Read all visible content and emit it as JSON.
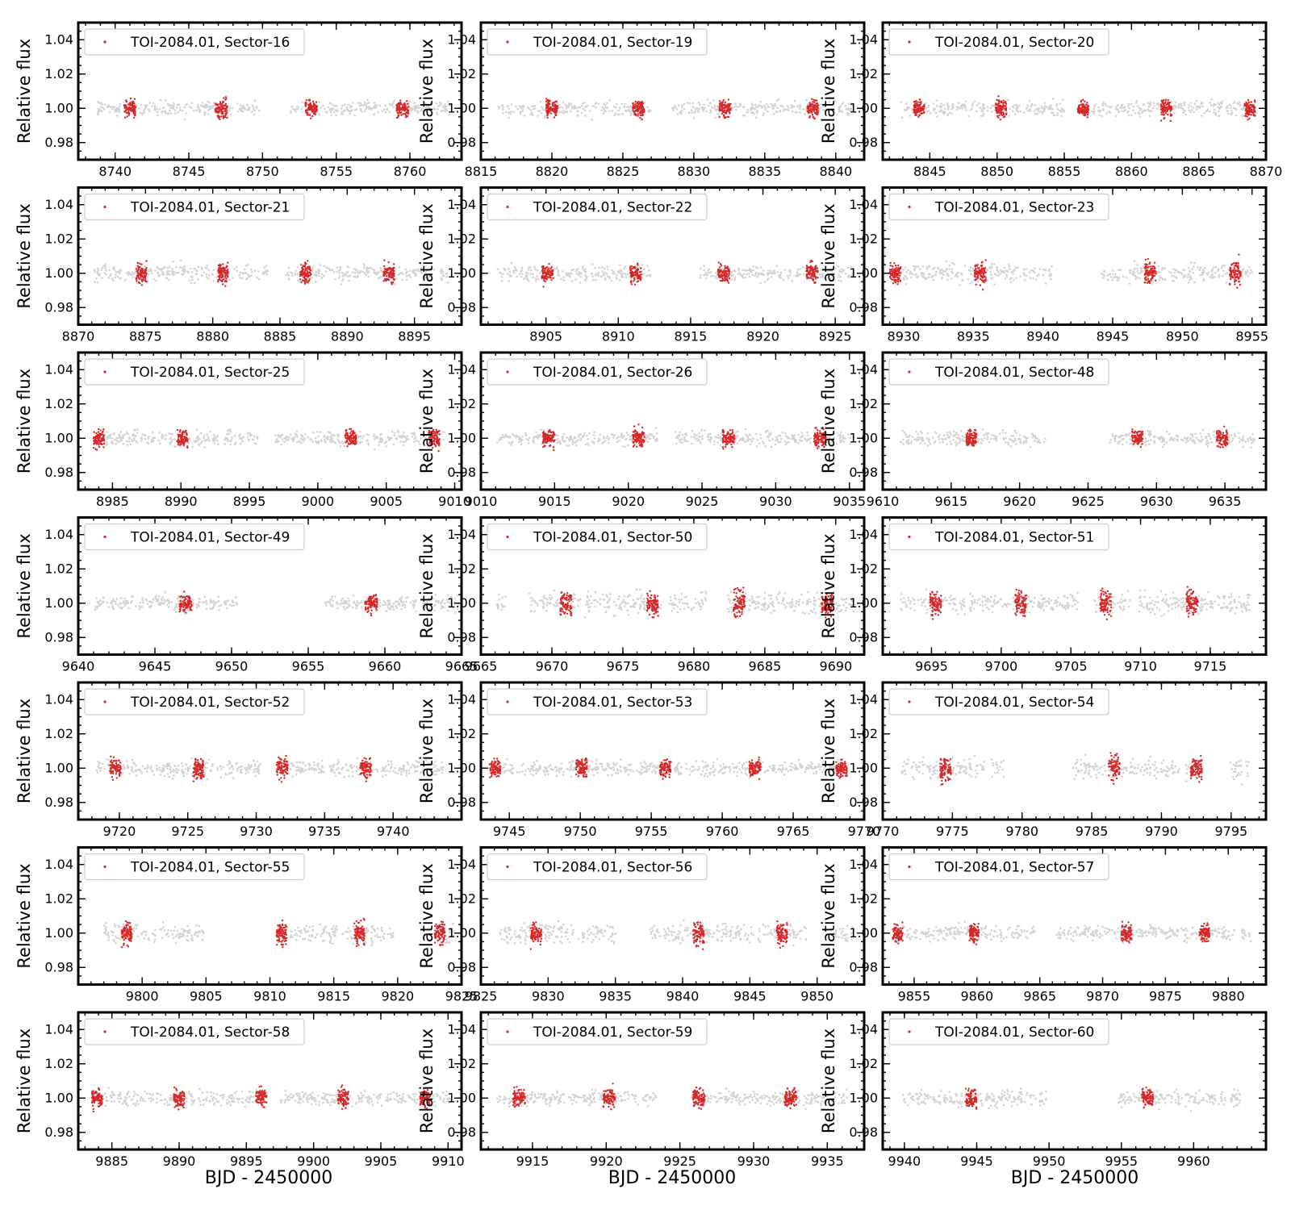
{
  "figure": {
    "ylabel": "Relative flux",
    "xlabel": "BJD - 2450000",
    "colors": {
      "background_points": "#d3d3d3",
      "transit_points": "#d62728"
    }
  },
  "chart_data": [
    {
      "type": "scatter",
      "legend": "TOI-2084.01, Sector-16",
      "xlim": [
        8737.5,
        8763.5
      ],
      "xticks": [
        8740,
        8745,
        8750,
        8755,
        8760
      ],
      "ylim": [
        0.97,
        1.05
      ],
      "yticks": [
        0.98,
        1.0,
        1.02,
        1.04
      ],
      "segments": [
        [
          8738.8,
          8749.8
        ],
        [
          8751.8,
          8762.7
        ]
      ],
      "transits": [
        8741.0,
        8747.2,
        8753.3,
        8759.5
      ],
      "scatter_sigma": 0.007
    },
    {
      "type": "scatter",
      "legend": "TOI-2084.01, Sector-19",
      "xlim": [
        8815,
        8842
      ],
      "xticks": [
        8815,
        8820,
        8825,
        8830,
        8835,
        8840
      ],
      "ylim": [
        0.97,
        1.05
      ],
      "yticks": [
        0.98,
        1.0,
        1.02,
        1.04
      ],
      "segments": [
        [
          8816.2,
          8827.0
        ],
        [
          8828.5,
          8841.2
        ]
      ],
      "transits": [
        8820.0,
        8826.1,
        8832.2,
        8838.4
      ],
      "scatter_sigma": 0.007
    },
    {
      "type": "scatter",
      "legend": "TOI-2084.01, Sector-20",
      "xlim": [
        8841.5,
        8870
      ],
      "xticks": [
        8845,
        8850,
        8855,
        8860,
        8865,
        8870
      ],
      "ylim": [
        0.97,
        1.05
      ],
      "yticks": [
        0.98,
        1.0,
        1.02,
        1.04
      ],
      "segments": [
        [
          8842.8,
          8855.0
        ],
        [
          8856.2,
          8869.3
        ]
      ],
      "transits": [
        8844.2,
        8850.3,
        8856.4,
        8862.6,
        8868.8
      ],
      "scatter_sigma": 0.007
    },
    {
      "type": "scatter",
      "legend": "TOI-2084.01, Sector-21",
      "xlim": [
        8870,
        8898.5
      ],
      "xticks": [
        8870,
        8875,
        8880,
        8885,
        8890,
        8895
      ],
      "ylim": [
        0.97,
        1.05
      ],
      "yticks": [
        0.98,
        1.0,
        1.02,
        1.04
      ],
      "segments": [
        [
          8871.2,
          8884.1
        ],
        [
          8885.4,
          8897.5
        ]
      ],
      "transits": [
        8874.7,
        8880.8,
        8886.9,
        8893.1
      ],
      "scatter_sigma": 0.008
    },
    {
      "type": "scatter",
      "legend": "TOI-2084.01, Sector-22",
      "xlim": [
        8900.5,
        8927
      ],
      "xticks": [
        8905,
        8910,
        8915,
        8920,
        8925
      ],
      "ylim": [
        0.97,
        1.05
      ],
      "yticks": [
        0.98,
        1.0,
        1.02,
        1.04
      ],
      "segments": [
        [
          8901.6,
          8912.3
        ],
        [
          8915.5,
          8926.3
        ]
      ],
      "transits": [
        8905.1,
        8911.2,
        8917.3,
        8923.4
      ],
      "scatter_sigma": 0.007
    },
    {
      "type": "scatter",
      "legend": "TOI-2084.01, Sector-23",
      "xlim": [
        8928.5,
        8956
      ],
      "xticks": [
        8930,
        8935,
        8940,
        8945,
        8950,
        8955
      ],
      "ylim": [
        0.97,
        1.05
      ],
      "yticks": [
        0.98,
        1.0,
        1.02,
        1.04
      ],
      "segments": [
        [
          8929.3,
          8940.8
        ],
        [
          8944.2,
          8955.0
        ]
      ],
      "transits": [
        8929.4,
        8935.5,
        8947.7,
        8953.8
      ],
      "scatter_sigma": 0.009
    },
    {
      "type": "scatter",
      "legend": "TOI-2084.01, Sector-25",
      "xlim": [
        8982.5,
        9010.5
      ],
      "xticks": [
        8985,
        8990,
        8995,
        9000,
        9005,
        9010
      ],
      "ylim": [
        0.97,
        1.05
      ],
      "yticks": [
        0.98,
        1.0,
        1.02,
        1.04
      ],
      "segments": [
        [
          8983.7,
          8995.6
        ],
        [
          8996.9,
          9009.2
        ]
      ],
      "transits": [
        8984.0,
        8990.1,
        9002.4,
        9008.5
      ],
      "scatter_sigma": 0.007
    },
    {
      "type": "scatter",
      "legend": "TOI-2084.01, Sector-26",
      "xlim": [
        9010,
        9036
      ],
      "xticks": [
        9010,
        9015,
        9020,
        9025,
        9030,
        9035
      ],
      "ylim": [
        0.97,
        1.05
      ],
      "yticks": [
        0.98,
        1.0,
        1.02,
        1.04
      ],
      "segments": [
        [
          9011.1,
          9022.1
        ],
        [
          9023.2,
          9035.2
        ]
      ],
      "transits": [
        9014.6,
        9020.7,
        9026.8,
        9033.0
      ],
      "scatter_sigma": 0.007
    },
    {
      "type": "scatter",
      "legend": "TOI-2084.01, Sector-48",
      "xlim": [
        9610,
        9638
      ],
      "xticks": [
        9610,
        9615,
        9620,
        9625,
        9630,
        9635
      ],
      "ylim": [
        0.97,
        1.05
      ],
      "yticks": [
        0.98,
        1.0,
        1.02,
        1.04
      ],
      "segments": [
        [
          9611.3,
          9621.9
        ],
        [
          9626.5,
          9637.2
        ]
      ],
      "transits": [
        9616.5,
        9628.6,
        9634.8
      ],
      "scatter_sigma": 0.007
    },
    {
      "type": "scatter",
      "legend": "TOI-2084.01, Sector-49",
      "xlim": [
        9640,
        9665
      ],
      "xticks": [
        9640,
        9645,
        9650,
        9655,
        9660,
        9665
      ],
      "ylim": [
        0.97,
        1.05
      ],
      "yticks": [
        0.98,
        1.0,
        1.02,
        1.04
      ],
      "segments": [
        [
          9641.1,
          9650.4
        ],
        [
          9656.1,
          9664.8
        ]
      ],
      "transits": [
        9647.0,
        9659.1
      ],
      "scatter_sigma": 0.007
    },
    {
      "type": "scatter",
      "legend": "TOI-2084.01, Sector-50",
      "xlim": [
        9665,
        9692
      ],
      "xticks": [
        9665,
        9670,
        9675,
        9680,
        9685,
        9690
      ],
      "ylim": [
        0.97,
        1.05
      ],
      "yticks": [
        0.98,
        1.0,
        1.02,
        1.04
      ],
      "segments": [
        [
          9666.0,
          9666.8
        ],
        [
          9668.4,
          9677.8
        ],
        [
          9678.3,
          9680.9
        ],
        [
          9682.3,
          9691.3
        ]
      ],
      "transits": [
        9671.0,
        9677.1,
        9683.2,
        9689.4
      ],
      "scatter_sigma": 0.01
    },
    {
      "type": "scatter",
      "legend": "TOI-2084.01, Sector-51",
      "xlim": [
        9691.5,
        9719
      ],
      "xticks": [
        9695,
        9700,
        9705,
        9710,
        9715
      ],
      "ylim": [
        0.97,
        1.05
      ],
      "yticks": [
        0.98,
        1.0,
        1.02,
        1.04
      ],
      "segments": [
        [
          9692.7,
          9705.5
        ],
        [
          9706.7,
          9718.0
        ]
      ],
      "transits": [
        9695.3,
        9701.4,
        9707.5,
        9713.7
      ],
      "scatter_sigma": 0.01
    },
    {
      "type": "scatter",
      "legend": "TOI-2084.01, Sector-52",
      "xlim": [
        9717,
        9745
      ],
      "xticks": [
        9720,
        9725,
        9730,
        9735,
        9740
      ],
      "ylim": [
        0.97,
        1.05
      ],
      "yticks": [
        0.98,
        1.0,
        1.02,
        1.04
      ],
      "segments": [
        [
          9718.3,
          9730.3
        ],
        [
          9731.5,
          9743.7
        ]
      ],
      "transits": [
        9719.7,
        9725.8,
        9731.9,
        9738.0
      ],
      "scatter_sigma": 0.008
    },
    {
      "type": "scatter",
      "legend": "TOI-2084.01, Sector-53",
      "xlim": [
        9743,
        9770
      ],
      "xticks": [
        9745,
        9750,
        9755,
        9760,
        9765,
        9770
      ],
      "ylim": [
        0.97,
        1.05
      ],
      "yticks": [
        0.98,
        1.0,
        1.02,
        1.04
      ],
      "segments": [
        [
          9743.8,
          9755.9
        ],
        [
          9756.6,
          9768.8
        ]
      ],
      "transits": [
        9744.0,
        9750.1,
        9756.0,
        9762.3,
        9768.4
      ],
      "scatter_sigma": 0.007
    },
    {
      "type": "scatter",
      "legend": "TOI-2084.01, Sector-54",
      "xlim": [
        9770,
        9797.5
      ],
      "xticks": [
        9770,
        9775,
        9780,
        9785,
        9790,
        9795
      ],
      "ylim": [
        0.97,
        1.05
      ],
      "yticks": [
        0.98,
        1.0,
        1.02,
        1.04
      ],
      "segments": [
        [
          9771.3,
          9777.4
        ],
        [
          9777.8,
          9778.7
        ],
        [
          9783.6,
          9791.3
        ],
        [
          9791.7,
          9792.9
        ],
        [
          9794.8,
          9796.4
        ]
      ],
      "transits": [
        9774.5,
        9786.6,
        9792.5
      ],
      "scatter_sigma": 0.01
    },
    {
      "type": "scatter",
      "legend": "TOI-2084.01, Sector-55",
      "xlim": [
        9795,
        9825
      ],
      "xticks": [
        9800,
        9805,
        9810,
        9815,
        9820,
        9825
      ],
      "ylim": [
        0.97,
        1.05
      ],
      "yticks": [
        0.98,
        1.0,
        1.02,
        1.04
      ],
      "segments": [
        [
          9797.0,
          9804.9
        ],
        [
          9810.6,
          9819.7
        ],
        [
          9823.2,
          9824.6
        ]
      ],
      "transits": [
        9798.8,
        9810.9,
        9817.0,
        9823.3
      ],
      "scatter_sigma": 0.009
    },
    {
      "type": "scatter",
      "legend": "TOI-2084.01, Sector-56",
      "xlim": [
        9825,
        9853.5
      ],
      "xticks": [
        9825,
        9830,
        9835,
        9840,
        9845,
        9850
      ],
      "ylim": [
        0.97,
        1.05
      ],
      "yticks": [
        0.98,
        1.0,
        1.02,
        1.04
      ],
      "segments": [
        [
          9826.3,
          9832.3
        ],
        [
          9832.5,
          9835.1
        ],
        [
          9837.5,
          9847.2
        ],
        [
          9847.5,
          9849.2
        ],
        [
          9851.2,
          9852.8
        ]
      ],
      "transits": [
        9829.1,
        9841.2,
        9847.4
      ],
      "scatter_sigma": 0.009
    },
    {
      "type": "scatter",
      "legend": "TOI-2084.01, Sector-57",
      "xlim": [
        9852.5,
        9883
      ],
      "xticks": [
        9855,
        9860,
        9865,
        9870,
        9875,
        9880
      ],
      "ylim": [
        0.97,
        1.05
      ],
      "yticks": [
        0.98,
        1.0,
        1.02,
        1.04
      ],
      "segments": [
        [
          9853.5,
          9864.6
        ],
        [
          9866.3,
          9881.8
        ]
      ],
      "transits": [
        9853.7,
        9859.8,
        9871.9,
        9878.1
      ],
      "scatter_sigma": 0.007
    },
    {
      "type": "scatter",
      "legend": "TOI-2084.01, Sector-58",
      "xlim": [
        9882.5,
        9911
      ],
      "xticks": [
        9885,
        9890,
        9895,
        9900,
        9905,
        9910
      ],
      "ylim": [
        0.97,
        1.05
      ],
      "yticks": [
        0.98,
        1.0,
        1.02,
        1.04
      ],
      "segments": [
        [
          9883.5,
          9896.5
        ],
        [
          9897.4,
          9910.1
        ]
      ],
      "transits": [
        9883.9,
        9890.0,
        9896.1,
        9902.2,
        9908.3
      ],
      "scatter_sigma": 0.007
    },
    {
      "type": "scatter",
      "legend": "TOI-2084.01, Sector-59",
      "xlim": [
        9911.5,
        9937.5
      ],
      "xticks": [
        9915,
        9920,
        9925,
        9930,
        9935
      ],
      "ylim": [
        0.97,
        1.05
      ],
      "yticks": [
        0.98,
        1.0,
        1.02,
        1.04
      ],
      "segments": [
        [
          9912.6,
          9923.4
        ],
        [
          9925.8,
          9936.4
        ]
      ],
      "transits": [
        9914.1,
        9920.2,
        9926.3,
        9932.5
      ],
      "scatter_sigma": 0.007
    },
    {
      "type": "scatter",
      "legend": "TOI-2084.01, Sector-60",
      "xlim": [
        9938.5,
        9965
      ],
      "xticks": [
        9940,
        9945,
        9950,
        9955,
        9960
      ],
      "ylim": [
        0.97,
        1.05
      ],
      "yticks": [
        0.98,
        1.0,
        1.02,
        1.04
      ],
      "segments": [
        [
          9939.9,
          9949.8
        ],
        [
          9954.8,
          9963.3
        ]
      ],
      "transits": [
        9944.6,
        9956.8
      ],
      "scatter_sigma": 0.008
    }
  ]
}
